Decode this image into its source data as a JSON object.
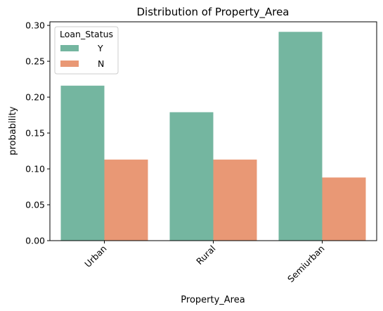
{
  "chart_data": {
    "type": "bar",
    "title": "Distribution of Property_Area",
    "xlabel": "Property_Area",
    "ylabel": "probability",
    "categories": [
      "Urban",
      "Rural",
      "Semiurban"
    ],
    "series": [
      {
        "name": "Y",
        "values": [
          0.216,
          0.179,
          0.291
        ],
        "color": "#74b6a0"
      },
      {
        "name": "N",
        "values": [
          0.113,
          0.113,
          0.088
        ],
        "color": "#e99875"
      }
    ],
    "ylim": [
      0,
      0.305
    ],
    "yticks": [
      "0.00",
      "0.05",
      "0.10",
      "0.15",
      "0.20",
      "0.25",
      "0.30"
    ],
    "grid": false,
    "legend": {
      "title": "Loan_Status",
      "placement": "top-left"
    },
    "xtick_rotation": 45
  }
}
